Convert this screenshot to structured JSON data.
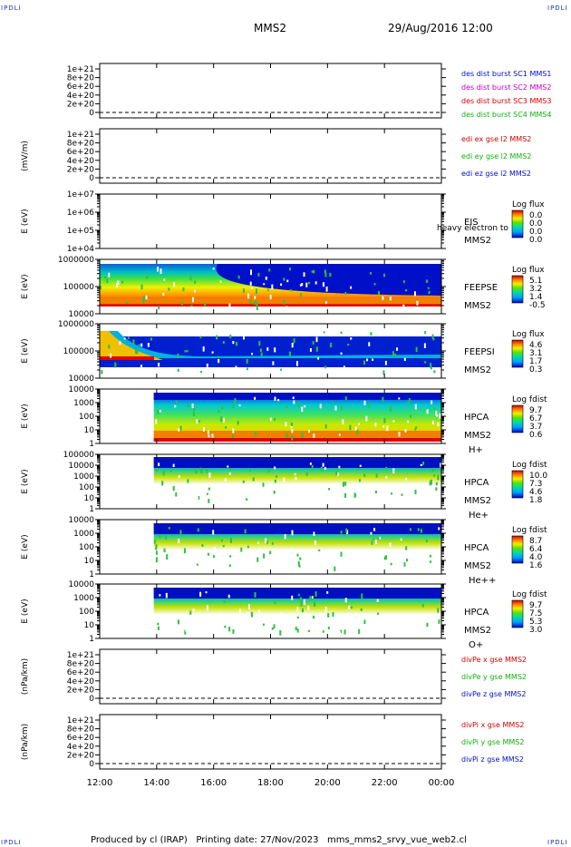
{
  "header": {
    "corner_label": "IPDLI",
    "title": "MMS2",
    "datetime": "29/Aug/2016 12:00"
  },
  "footer": {
    "text": "Produced by cl (IRAP)   Printing date: 27/Nov/2023   mms_mms2_srvy_vue_web2.cl"
  },
  "colors": {
    "red": "#d00000",
    "magenta": "#c000c0",
    "green": "#10b010",
    "blue": "#0010c0",
    "axis": "#000000"
  },
  "chart_data": [
    {
      "type": "line",
      "id": "des-dist",
      "yticks": [
        "0",
        "2e+20",
        "4e+20",
        "6e+20",
        "8e+20",
        "1e+21"
      ],
      "ylabel": "",
      "legend": [
        {
          "text": "des dist burst SC1 MMS1",
          "color": "#0010c0"
        },
        {
          "text": "des dist burst SC2 MMS2",
          "color": "#c000c0"
        },
        {
          "text": "des dist burst SC3 MMS3",
          "color": "#d00000"
        },
        {
          "text": "des dist burst SC4 MMS4",
          "color": "#10b010"
        }
      ]
    },
    {
      "type": "line",
      "id": "edi-e",
      "yticks": [
        "0",
        "2e+20",
        "4e+20",
        "6e+20",
        "8e+20",
        "1e+21"
      ],
      "ylabel": "(mV/m)",
      "legend": [
        {
          "text": "edi ex gse l2 MMS2",
          "color": "#d00000"
        },
        {
          "text": "edi ey gse l2 MMS2",
          "color": "#10b010"
        },
        {
          "text": "edi ez gse l2 MMS2",
          "color": "#0010c0"
        }
      ]
    },
    {
      "type": "heatmap",
      "id": "eis",
      "yticks": [
        "1e+04",
        "1e+05",
        "1e+06",
        "1e+07"
      ],
      "ylabel": "E (eV)",
      "labels": [
        "EIS",
        "MMS2"
      ],
      "overlay_text": "heavy electron to",
      "colorbar": {
        "title": "Log flux",
        "ticks": [
          "0.0",
          "0.0",
          "0.0",
          "0.0"
        ]
      },
      "fill": "empty"
    },
    {
      "type": "heatmap",
      "id": "feeps-e",
      "yticks": [
        "10000",
        "100000",
        "1000000"
      ],
      "ylabel": "E (eV)",
      "labels": [
        "FEEPSE",
        "MMS2"
      ],
      "colorbar": {
        "title": "Log flux",
        "ticks": [
          "5.1",
          "3.2",
          "1.4",
          "-0.5"
        ]
      },
      "data_start_hour": 12.0
    },
    {
      "type": "heatmap",
      "id": "feeps-i",
      "yticks": [
        "10000",
        "100000",
        "1000000"
      ],
      "ylabel": "E (eV)",
      "labels": [
        "FEEPSI",
        "MMS2"
      ],
      "colorbar": {
        "title": "Log flux",
        "ticks": [
          "4.6",
          "3.1",
          "1.7",
          "0.3"
        ]
      },
      "data_start_hour": 12.0
    },
    {
      "type": "heatmap",
      "id": "hpca-h",
      "yticks": [
        "1",
        "10",
        "100",
        "1000",
        "10000"
      ],
      "ylabel": "E (eV)",
      "labels": [
        "HPCA",
        "MMS2",
        "H+"
      ],
      "colorbar": {
        "title": "Log fdist",
        "ticks": [
          "9.7",
          "6.7",
          "3.7",
          "0.6"
        ]
      },
      "data_start_hour": 13.9
    },
    {
      "type": "heatmap",
      "id": "hpca-he",
      "yticks": [
        "1",
        "10",
        "100",
        "1000",
        "10000",
        "100000"
      ],
      "ylabel": "E (eV)",
      "labels": [
        "HPCA",
        "MMS2",
        "He+"
      ],
      "colorbar": {
        "title": "Log fdist",
        "ticks": [
          "10.0",
          "7.3",
          "4.6",
          "1.8"
        ]
      },
      "data_start_hour": 13.9
    },
    {
      "type": "heatmap",
      "id": "hpca-he2",
      "yticks": [
        "1",
        "10",
        "100",
        "1000",
        "10000"
      ],
      "ylabel": "E (eV)",
      "labels": [
        "HPCA",
        "MMS2",
        "He++"
      ],
      "colorbar": {
        "title": "Log fdist",
        "ticks": [
          "8.7",
          "6.4",
          "4.0",
          "1.6"
        ]
      },
      "data_start_hour": 13.9
    },
    {
      "type": "heatmap",
      "id": "hpca-o",
      "yticks": [
        "1",
        "10",
        "100",
        "1000",
        "10000"
      ],
      "ylabel": "E (eV)",
      "labels": [
        "HPCA",
        "MMS2",
        "O+"
      ],
      "colorbar": {
        "title": "Log fdist",
        "ticks": [
          "9.7",
          "7.5",
          "5.3",
          "3.0"
        ]
      },
      "data_start_hour": 13.9
    },
    {
      "type": "line",
      "id": "divpe",
      "yticks": [
        "0",
        "2e+20",
        "4e+20",
        "6e+20",
        "8e+20",
        "1e+21"
      ],
      "ylabel": "(nPa/km)",
      "legend": [
        {
          "text": "divPe x gse MMS2",
          "color": "#d00000"
        },
        {
          "text": "divPe y gse MMS2",
          "color": "#10b010"
        },
        {
          "text": "divPe z gse MMS2",
          "color": "#0010c0"
        }
      ]
    },
    {
      "type": "line",
      "id": "divpi",
      "yticks": [
        "0",
        "2e+20",
        "4e+20",
        "6e+20",
        "8e+20",
        "1e+21"
      ],
      "ylabel": "(nPa/km)",
      "legend": [
        {
          "text": "divPi x gse MMS2",
          "color": "#d00000"
        },
        {
          "text": "divPi y gse MMS2",
          "color": "#10b010"
        },
        {
          "text": "divPi z gse MMS2",
          "color": "#0010c0"
        }
      ]
    }
  ],
  "xaxis": {
    "ticks": [
      "12:00",
      "14:00",
      "16:00",
      "18:00",
      "20:00",
      "22:00",
      "00:00"
    ],
    "range_hours": [
      12,
      24
    ]
  }
}
